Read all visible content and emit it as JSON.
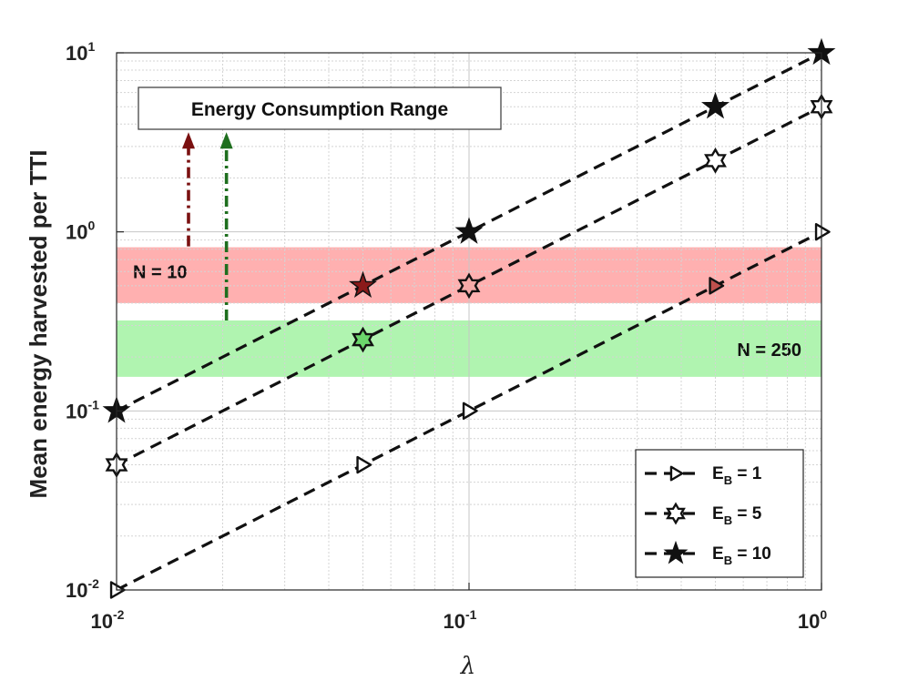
{
  "chart_data": {
    "type": "line",
    "x_scale": "log",
    "y_scale": "log",
    "xlim": [
      0.01,
      1
    ],
    "ylim": [
      0.01,
      10
    ],
    "xlabel": "λ",
    "ylabel": "Mean energy harvested per TTI",
    "x_ticks": [
      {
        "base": "10",
        "exp": "-2",
        "value": 0.01
      },
      {
        "base": "10",
        "exp": "-1",
        "value": 0.1
      },
      {
        "base": "10",
        "exp": "0",
        "value": 1
      }
    ],
    "y_ticks": [
      {
        "base": "10",
        "exp": "-2",
        "value": 0.01
      },
      {
        "base": "10",
        "exp": "-1",
        "value": 0.1
      },
      {
        "base": "10",
        "exp": "0",
        "value": 1
      },
      {
        "base": "10",
        "exp": "1",
        "value": 10
      }
    ],
    "series": [
      {
        "name": "E_B = 1",
        "legend_main": "E",
        "legend_sub": "B",
        "legend_rest": " = 1",
        "marker": "triangle-right",
        "x": [
          0.01,
          0.05,
          0.1,
          0.5,
          1
        ],
        "y": [
          0.01,
          0.05,
          0.1,
          0.5,
          1
        ],
        "marker_colors": [
          "#ffffff",
          "#ffffff",
          "#ffffff",
          "#c0504d",
          "#ffffff"
        ]
      },
      {
        "name": "E_B = 5",
        "legend_main": "E",
        "legend_sub": "B",
        "legend_rest": " = 5",
        "marker": "hexagram",
        "x": [
          0.01,
          0.05,
          0.1,
          0.5,
          1
        ],
        "y": [
          0.05,
          0.25,
          0.5,
          2.5,
          5
        ],
        "marker_colors": [
          "#ffffff",
          "#6bd66b",
          "#f4aaa8",
          "#ffffff",
          "#ffffff"
        ]
      },
      {
        "name": "E_B = 10",
        "legend_main": "E",
        "legend_sub": "B",
        "legend_rest": " = 10",
        "marker": "pentagram",
        "x": [
          0.01,
          0.05,
          0.1,
          0.5,
          1
        ],
        "y": [
          0.1,
          0.5,
          1,
          5,
          10
        ],
        "marker_colors": [
          "#111111",
          "#8b1a1a",
          "#111111",
          "#111111",
          "#111111"
        ]
      }
    ],
    "bands": [
      {
        "label": "N = 10",
        "y_range": [
          0.4,
          0.82
        ],
        "color": "#ff8e8e"
      },
      {
        "label": "N = 250",
        "y_range": [
          0.155,
          0.32
        ],
        "color": "#8ef08e"
      }
    ],
    "annotation": {
      "text": "Energy Consumption Range",
      "arrows": [
        {
          "x": 0.016,
          "y_from": 0.83,
          "y_to": 3.6,
          "color": "#7a1010"
        },
        {
          "x": 0.0205,
          "y_from": 0.32,
          "y_to": 3.6,
          "color": "#1e6e1e"
        }
      ]
    },
    "legend_position": "bottom-right",
    "grid": true
  }
}
